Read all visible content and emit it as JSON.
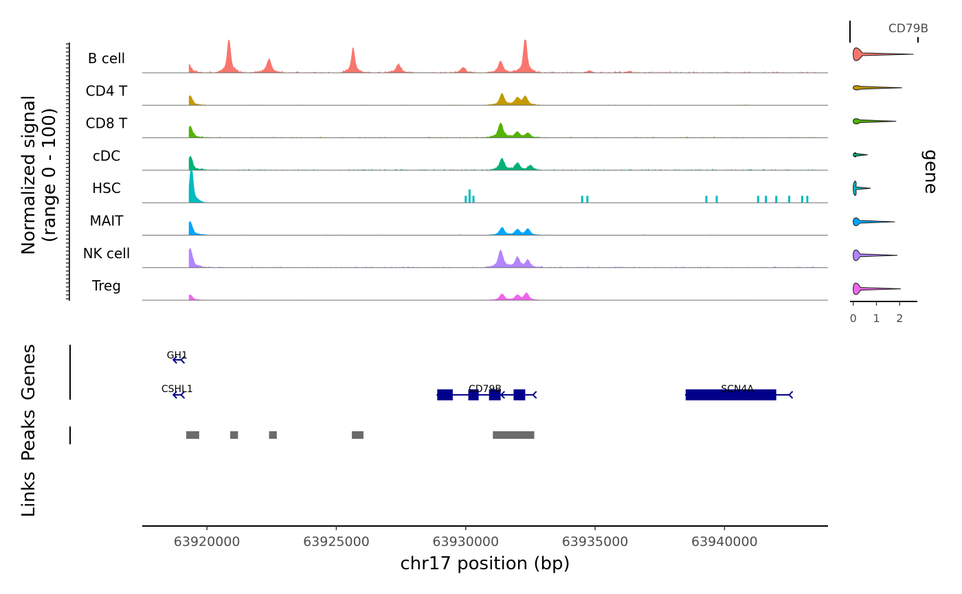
{
  "chart_data": {
    "type": "area",
    "ylabel_line1": "Normalized signal",
    "ylabel_line2": "(range 0 - 100)",
    "xlabel": "chr17 position (bp)",
    "xlim": [
      63917500,
      63944000
    ],
    "x_ticks": [
      63920000,
      63925000,
      63930000,
      63935000,
      63940000
    ],
    "x_tick_labels": [
      "63920000",
      "63925000",
      "63930000",
      "63935000",
      "63940000"
    ],
    "track_labels": [
      "Genes",
      "Peaks",
      "Links"
    ],
    "groups": [
      {
        "name": "B cell",
        "color": "#F8766D",
        "peaks": [
          [
            63919300,
            0.22
          ],
          [
            63920850,
            0.9
          ],
          [
            63922400,
            0.35
          ],
          [
            63925650,
            0.65
          ],
          [
            63927400,
            0.22
          ],
          [
            63929900,
            0.14
          ],
          [
            63931350,
            0.3
          ],
          [
            63932300,
            0.95
          ],
          [
            63934800,
            0.05
          ],
          [
            63936300,
            0.04
          ]
        ],
        "noise": 0.05
      },
      {
        "name": "CD4 T",
        "color": "#C49A00",
        "peaks": [
          [
            63919350,
            0.25
          ],
          [
            63931400,
            0.3
          ],
          [
            63932000,
            0.18
          ],
          [
            63932300,
            0.22
          ]
        ],
        "noise": 0.02
      },
      {
        "name": "CD8 T",
        "color": "#53B400",
        "peaks": [
          [
            63919350,
            0.3
          ],
          [
            63931350,
            0.38
          ],
          [
            63932000,
            0.14
          ],
          [
            63932400,
            0.12
          ]
        ],
        "noise": 0.03
      },
      {
        "name": "cDC",
        "color": "#00B374",
        "peaks": [
          [
            63919350,
            0.35
          ],
          [
            63931400,
            0.3
          ],
          [
            63932000,
            0.18
          ],
          [
            63932500,
            0.12
          ]
        ],
        "noise": 0.04
      },
      {
        "name": "HSC",
        "color": "#00BCC1",
        "peaks": [
          [
            63919400,
            1.0
          ]
        ],
        "spikes": [
          [
            63930000,
            0.22
          ],
          [
            63930150,
            0.42
          ],
          [
            63930300,
            0.22
          ],
          [
            63934500,
            0.22
          ],
          [
            63934700,
            0.22
          ],
          [
            63939300,
            0.22
          ],
          [
            63939700,
            0.22
          ],
          [
            63941300,
            0.22
          ],
          [
            63941600,
            0.22
          ],
          [
            63942000,
            0.22
          ],
          [
            63942500,
            0.22
          ],
          [
            63943000,
            0.22
          ],
          [
            63943200,
            0.22
          ]
        ],
        "noise": 0.0
      },
      {
        "name": "MAIT",
        "color": "#00A6FF",
        "peaks": [
          [
            63919350,
            0.35
          ],
          [
            63931400,
            0.2
          ],
          [
            63932000,
            0.14
          ],
          [
            63932400,
            0.16
          ]
        ],
        "noise": 0.02
      },
      {
        "name": "NK cell",
        "color": "#B385FF",
        "peaks": [
          [
            63919350,
            0.5
          ],
          [
            63931350,
            0.45
          ],
          [
            63932000,
            0.25
          ],
          [
            63932400,
            0.18
          ]
        ],
        "noise": 0.04
      },
      {
        "name": "Treg",
        "color": "#EF67EB",
        "peaks": [
          [
            63919350,
            0.14
          ],
          [
            63931400,
            0.16
          ],
          [
            63932000,
            0.12
          ],
          [
            63932350,
            0.18
          ]
        ],
        "noise": 0.01
      }
    ],
    "violin": {
      "title": "CD79B",
      "axis_label": "gene",
      "ticks": [
        0,
        1,
        2
      ],
      "xlim": [
        -0.05,
        2.7
      ],
      "maxima": [
        2.6,
        2.1,
        1.85,
        0.62,
        0.75,
        1.8,
        1.9,
        2.05
      ],
      "bulge": [
        0.65,
        0.05,
        0.12,
        0.05,
        0.75,
        0.3,
        0.5,
        0.55
      ]
    },
    "genes": [
      {
        "name": "GH1",
        "start": 63918700,
        "end": 63919000,
        "row": 0,
        "exons": [],
        "strand": "-"
      },
      {
        "name": "CSHL1",
        "start": 63918700,
        "end": 63919000,
        "row": 1,
        "exons": [],
        "strand": "-"
      },
      {
        "name": "CD79B",
        "start": 63928900,
        "end": 63932600,
        "row": 1,
        "exons": [
          [
            63928900,
            63929500
          ],
          [
            63930100,
            63930500
          ],
          [
            63930900,
            63931350
          ],
          [
            63931850,
            63932300
          ]
        ],
        "strand": "-"
      },
      {
        "name": "SCN4A",
        "start": 63938500,
        "end": 63942500,
        "row": 1,
        "exons": [
          [
            63938500,
            63942000
          ]
        ],
        "strand": "-"
      }
    ],
    "peaks": [
      [
        63919200,
        63919700
      ],
      [
        63920900,
        63921200
      ],
      [
        63922400,
        63922700
      ],
      [
        63925600,
        63926050
      ],
      [
        63931050,
        63932650
      ]
    ],
    "gene_color": "#00008B",
    "peak_color": "#6B6B6B"
  }
}
